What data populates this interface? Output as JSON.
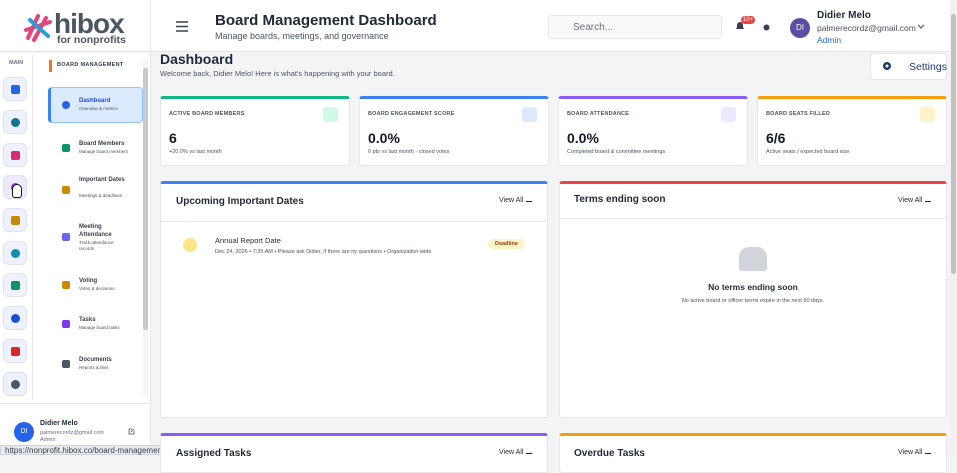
{
  "logo": {
    "name": "hibox",
    "tagline": "for nonprofits"
  },
  "header": {
    "title": "Board Management Dashboard",
    "subtitle": "Manage boards, meetings, and governance",
    "search_placeholder": "Search...",
    "notification_badge": "10+",
    "user": {
      "initials": "DI",
      "name": "Didier Melo",
      "email": "palmerecordz@gmail.com",
      "role": "Admin"
    }
  },
  "rail": {
    "label": "MAIN"
  },
  "sidebar": {
    "section": "BOARD MANAGEMENT",
    "items": [
      {
        "title": "Dashboard",
        "subtitle": "Overview & metrics"
      },
      {
        "title": "Board Members",
        "subtitle": "Manage board members"
      },
      {
        "title": "Important Dates",
        "subtitle": "Meetings & deadlines"
      },
      {
        "title": "Meeting Attendance",
        "subtitle": "Track attendance records"
      },
      {
        "title": "Voting",
        "subtitle": "Votes & decisions"
      },
      {
        "title": "Tasks",
        "subtitle": "Manage board tasks"
      },
      {
        "title": "Documents",
        "subtitle": "Reports & files"
      }
    ]
  },
  "status_url": "https://nonprofit.hibox.co/board-management",
  "page": {
    "title": "Dashboard",
    "welcome": "Welcome back, Didier Melo! Here is what's happening with your board.",
    "settings": "Settings"
  },
  "stats": [
    {
      "label": "ACTIVE BOARD MEMBERS",
      "value": "6",
      "note": "+20.0% vs last month"
    },
    {
      "label": "BOARD ENGAGEMENT SCORE",
      "value": "0.0%",
      "note": "0 pts vs last month · closed votes"
    },
    {
      "label": "BOARD ATTENDANCE",
      "value": "0.0%",
      "note": "Completed board & committee meetings"
    },
    {
      "label": "BOARD SEATS FILLED",
      "value": "6/6",
      "note": "Active seats / expected board size"
    }
  ],
  "panels": [
    {
      "title": "Upcoming Important Dates",
      "link": "View All",
      "items": [
        {
          "title": "Annual Report Date",
          "meta": "Dec 24, 2026 • 7:35 AM • Please ask Didier, if there are ny questions • Organization-wide",
          "badge": "Deadline"
        }
      ]
    },
    {
      "title": "Terms ending soon",
      "link": "View All",
      "empty_title": "No terms ending soon",
      "empty_text": "No active board or officer terms expire in the next 90 days."
    },
    {
      "title": "Assigned Tasks",
      "link": "View All"
    },
    {
      "title": "Overdue Tasks",
      "link": "View All"
    }
  ]
}
